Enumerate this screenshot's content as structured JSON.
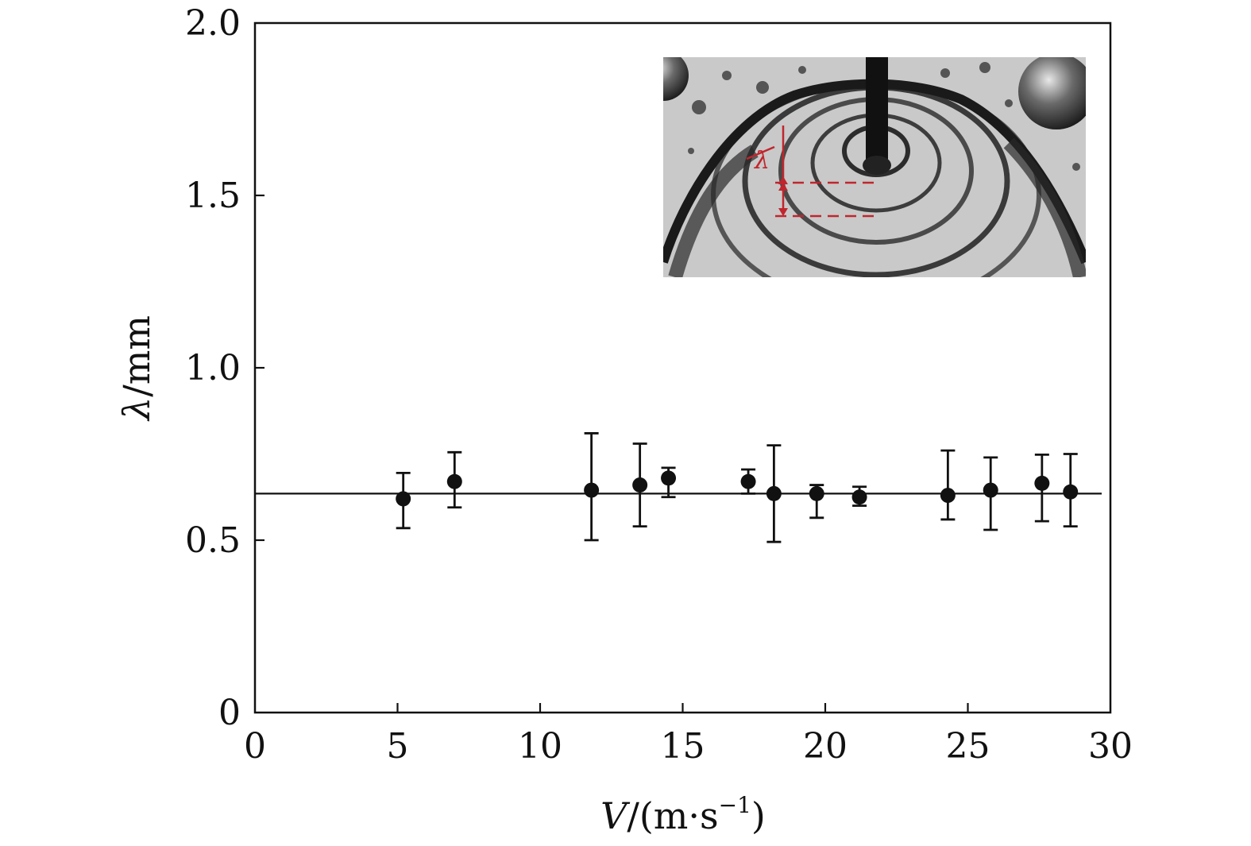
{
  "chart_data": {
    "type": "scatter",
    "title": "",
    "xlabel": {
      "var": "V",
      "rest": "/(m·s",
      "sup": "−1",
      "close": ")"
    },
    "ylabel": {
      "var": "λ",
      "rest": "/mm"
    },
    "xlim": [
      0,
      30
    ],
    "ylim": [
      0,
      2.0
    ],
    "x_ticks": [
      "0",
      "5",
      "10",
      "15",
      "20",
      "25",
      "30"
    ],
    "y_ticks": [
      "0",
      "0.5",
      "1.0",
      "1.5",
      "2.0"
    ],
    "x_tick_values": [
      0,
      5,
      10,
      15,
      20,
      25,
      30
    ],
    "y_tick_values": [
      0,
      0.5,
      1.0,
      1.5,
      2.0
    ],
    "grid": false,
    "legend": "none",
    "mean_line": 0.635,
    "points": [
      {
        "x": 5.2,
        "y": 0.62,
        "err_low": 0.535,
        "err_high": 0.695
      },
      {
        "x": 7.0,
        "y": 0.67,
        "err_low": 0.595,
        "err_high": 0.755
      },
      {
        "x": 11.8,
        "y": 0.645,
        "err_low": 0.5,
        "err_high": 0.81
      },
      {
        "x": 13.5,
        "y": 0.66,
        "err_low": 0.54,
        "err_high": 0.78
      },
      {
        "x": 14.5,
        "y": 0.68,
        "err_low": 0.625,
        "err_high": 0.71
      },
      {
        "x": 17.3,
        "y": 0.67,
        "err_low": 0.635,
        "err_high": 0.705
      },
      {
        "x": 18.2,
        "y": 0.635,
        "err_low": 0.495,
        "err_high": 0.775
      },
      {
        "x": 19.7,
        "y": 0.635,
        "err_low": 0.565,
        "err_high": 0.66
      },
      {
        "x": 21.2,
        "y": 0.625,
        "err_low": 0.6,
        "err_high": 0.655
      },
      {
        "x": 24.3,
        "y": 0.63,
        "err_low": 0.56,
        "err_high": 0.76
      },
      {
        "x": 25.8,
        "y": 0.645,
        "err_low": 0.53,
        "err_high": 0.74
      },
      {
        "x": 27.6,
        "y": 0.665,
        "err_low": 0.555,
        "err_high": 0.748
      },
      {
        "x": 28.6,
        "y": 0.64,
        "err_low": 0.54,
        "err_high": 0.75
      }
    ],
    "inset": {
      "label": "λ",
      "description_color": "#c0262d"
    },
    "colors": {
      "marker": "#111111",
      "line": "#111111",
      "inset_annotation": "#c0262d"
    }
  }
}
